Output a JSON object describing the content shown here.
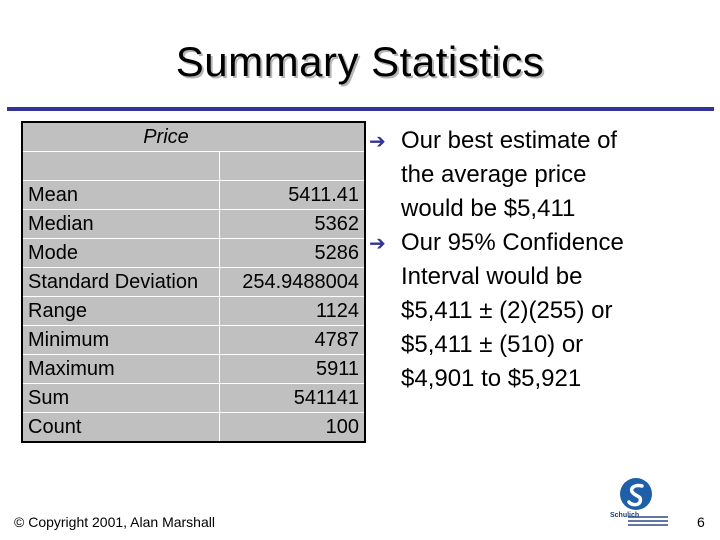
{
  "slide": {
    "title": "Summary Statistics",
    "table": {
      "header": "Price",
      "rows": [
        {
          "label": "Mean",
          "value": "5411.41"
        },
        {
          "label": "Median",
          "value": "5362"
        },
        {
          "label": "Mode",
          "value": "5286"
        },
        {
          "label": "Standard Deviation",
          "value": "254.9488004"
        },
        {
          "label": "Range",
          "value": "1124"
        },
        {
          "label": "Minimum",
          "value": "4787"
        },
        {
          "label": "Maximum",
          "value": "5911"
        },
        {
          "label": "Sum",
          "value": "541141"
        },
        {
          "label": "Count",
          "value": "100"
        }
      ]
    },
    "bullets": [
      {
        "lines": [
          "Our best estimate of",
          "the average price",
          "would be $5,411"
        ]
      },
      {
        "lines": [
          "Our 95% Confidence",
          "Interval would be",
          "$5,411 ± (2)(255) or",
          "$5,411 ± (510) or",
          "$4,901 to $5,921"
        ]
      }
    ],
    "footer": "© Copyright 2001, Alan Marshall",
    "page_number": "6",
    "logo_text": "Schulich",
    "colors": {
      "accent": "#333399",
      "table_bg": "#c0c0c0",
      "logo_blue": "#1f5fa8"
    },
    "bullet_icon": "right-arrow-icon"
  }
}
